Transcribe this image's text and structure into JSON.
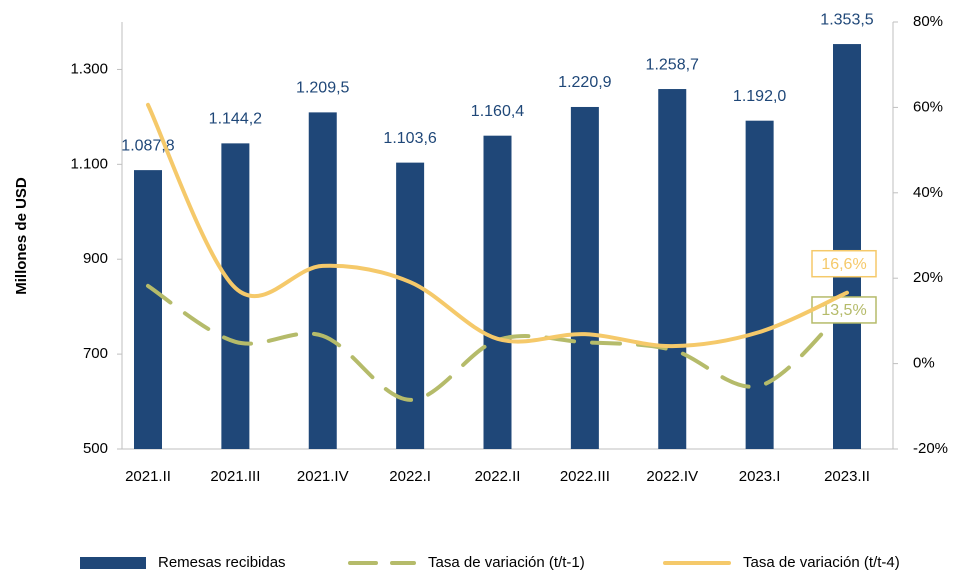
{
  "chart_data": {
    "type": "bar",
    "y_label": "Millones de USD",
    "categories": [
      "2021.II",
      "2021.III",
      "2021.IV",
      "2022.I",
      "2022.II",
      "2022.III",
      "2022.IV",
      "2023.I",
      "2023.II"
    ],
    "series": [
      {
        "name": "Remesas recibidas",
        "type": "bar",
        "color": "#1f4778",
        "values": [
          1087.8,
          1144.2,
          1209.5,
          1103.6,
          1160.4,
          1220.9,
          1258.7,
          1192.0,
          1353.5
        ],
        "value_labels": [
          "1.087,8",
          "1.144,2",
          "1.209,5",
          "1.103,6",
          "1.160,4",
          "1.220,9",
          "1.258,7",
          "1.192,0",
          "1.353,5"
        ]
      },
      {
        "name": "Tasa de variación (t/t-1)",
        "type": "line",
        "axis": "y2",
        "dashed": true,
        "color": "#b5bb6a",
        "values": [
          18.2,
          5.1,
          6.5,
          -8.5,
          5.5,
          5.0,
          3.2,
          -5.2,
          13.5
        ],
        "value_labels": [
          null,
          null,
          null,
          null,
          null,
          null,
          null,
          null,
          "13,5%"
        ]
      },
      {
        "name": "Tasa de variación (t/t-4)",
        "type": "line",
        "axis": "y2",
        "dashed": false,
        "color": "#f5c96a",
        "values": [
          60.6,
          17.7,
          22.9,
          19.1,
          5.8,
          6.9,
          4.1,
          7.4,
          16.6
        ],
        "value_labels": [
          null,
          null,
          null,
          null,
          null,
          null,
          null,
          null,
          "16,6%"
        ]
      }
    ],
    "ylim": [
      500,
      1400
    ],
    "yticks": [
      500,
      700,
      900,
      {
        "value": 1100,
        "label": "1.100"
      },
      {
        "value": 1300,
        "label": "1.300"
      }
    ],
    "y2lim": [
      -20,
      80
    ],
    "y2ticks": [
      {
        "value": -20,
        "label": "-20%"
      },
      {
        "value": 0,
        "label": "0%"
      },
      {
        "value": 20,
        "label": "20%"
      },
      {
        "value": 40,
        "label": "40%"
      },
      {
        "value": 60,
        "label": "60%"
      },
      {
        "value": 80,
        "label": "80%"
      }
    ],
    "legend": "bottom"
  }
}
